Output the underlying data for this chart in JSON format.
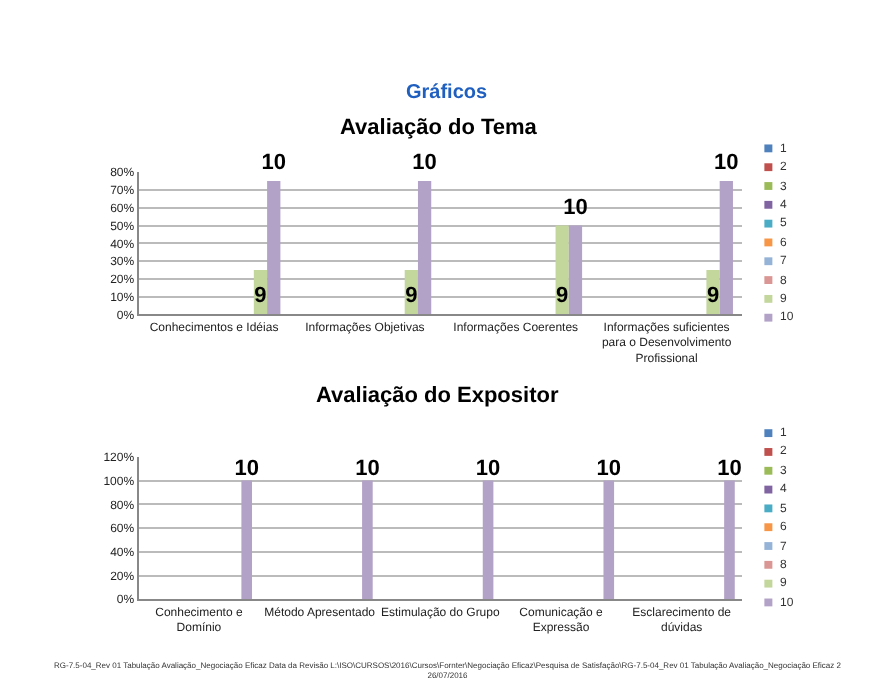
{
  "chart_data": [
    {
      "type": "bar",
      "title": "Avaliação do Tema",
      "annotations": [
        "Gráficos"
      ],
      "categories": [
        "Conhecimentos e Idéias",
        "Informações Objetivas",
        "Informações Coerentes",
        "Informações suficientes para o Desenvolvimento Profissional"
      ],
      "series": [
        {
          "name": "1",
          "color": "#4f81bd",
          "values": [
            0,
            0,
            0,
            0
          ]
        },
        {
          "name": "2",
          "color": "#c0504d",
          "values": [
            0,
            0,
            0,
            0
          ]
        },
        {
          "name": "3",
          "color": "#9bbb59",
          "values": [
            0,
            0,
            0,
            0
          ]
        },
        {
          "name": "4",
          "color": "#8064a2",
          "values": [
            0,
            0,
            0,
            0
          ]
        },
        {
          "name": "5",
          "color": "#4bacc6",
          "values": [
            0,
            0,
            0,
            0
          ]
        },
        {
          "name": "6",
          "color": "#f79646",
          "values": [
            0,
            0,
            0,
            0
          ]
        },
        {
          "name": "7",
          "color": "#95b3d7",
          "values": [
            0,
            0,
            0,
            0
          ]
        },
        {
          "name": "8",
          "color": "#d99694",
          "values": [
            0,
            0,
            0,
            0
          ]
        },
        {
          "name": "9",
          "color": "#c3d69b",
          "values": [
            25,
            25,
            50,
            25
          ]
        },
        {
          "name": "10",
          "color": "#b3a2c7",
          "values": [
            75,
            75,
            50,
            75
          ]
        }
      ],
      "ylim": [
        0,
        80
      ],
      "yticks": [
        {
          "value": 0,
          "label": "0%"
        },
        {
          "value": 10,
          "label": "10%"
        },
        {
          "value": 20,
          "label": "20%"
        },
        {
          "value": 30,
          "label": "30%"
        },
        {
          "value": 40,
          "label": "40%"
        },
        {
          "value": 50,
          "label": "50%"
        },
        {
          "value": 60,
          "label": "60%"
        },
        {
          "value": 70,
          "label": "70%"
        },
        {
          "value": 80,
          "label": "80%"
        }
      ],
      "grid": "y",
      "legend": "right"
    },
    {
      "type": "bar",
      "title": "Avaliação do Expositor",
      "annotations": [
        "RG-7.5-04_Rev 01 Tabulação Avaliação_Negociação Eficaz Data da Revisão L:\\ISO\\CURSOS\\2016\\Cursos\\Fornter\\Negociação Eficaz\\Pesquisa de Satisfação\\RG-7.5-04_Rev 01 Tabulação Avaliação_Negociação Eficaz 2 26/07/2016"
      ],
      "categories": [
        "Conhecimento e Domínio",
        "Método Apresentado",
        "Estimulação do Grupo",
        "Comunicação e Expressão",
        "Esclarecimento de dúvidas"
      ],
      "series": [
        {
          "name": "1",
          "color": "#4f81bd",
          "values": [
            0,
            0,
            0,
            0,
            0
          ]
        },
        {
          "name": "2",
          "color": "#c0504d",
          "values": [
            0,
            0,
            0,
            0,
            0
          ]
        },
        {
          "name": "3",
          "color": "#9bbb59",
          "values": [
            0,
            0,
            0,
            0,
            0
          ]
        },
        {
          "name": "4",
          "color": "#8064a2",
          "values": [
            0,
            0,
            0,
            0,
            0
          ]
        },
        {
          "name": "5",
          "color": "#4bacc6",
          "values": [
            0,
            0,
            0,
            0,
            0
          ]
        },
        {
          "name": "6",
          "color": "#f79646",
          "values": [
            0,
            0,
            0,
            0,
            0
          ]
        },
        {
          "name": "7",
          "color": "#95b3d7",
          "values": [
            0,
            0,
            0,
            0,
            0
          ]
        },
        {
          "name": "8",
          "color": "#d99694",
          "values": [
            0,
            0,
            0,
            0,
            0
          ]
        },
        {
          "name": "9",
          "color": "#c3d69b",
          "values": [
            0,
            0,
            0,
            0,
            0
          ]
        },
        {
          "name": "10",
          "color": "#b3a2c7",
          "values": [
            100,
            100,
            100,
            100,
            100
          ]
        }
      ],
      "ylim": [
        0,
        120
      ],
      "yticks": [
        {
          "value": 0,
          "label": "0%"
        },
        {
          "value": 20,
          "label": "20%"
        },
        {
          "value": 40,
          "label": "40%"
        },
        {
          "value": 60,
          "label": "60%"
        },
        {
          "value": 80,
          "label": "80%"
        },
        {
          "value": 100,
          "label": "100%"
        },
        {
          "value": 120,
          "label": "120%"
        }
      ],
      "grid": "y",
      "legend": "right"
    }
  ]
}
